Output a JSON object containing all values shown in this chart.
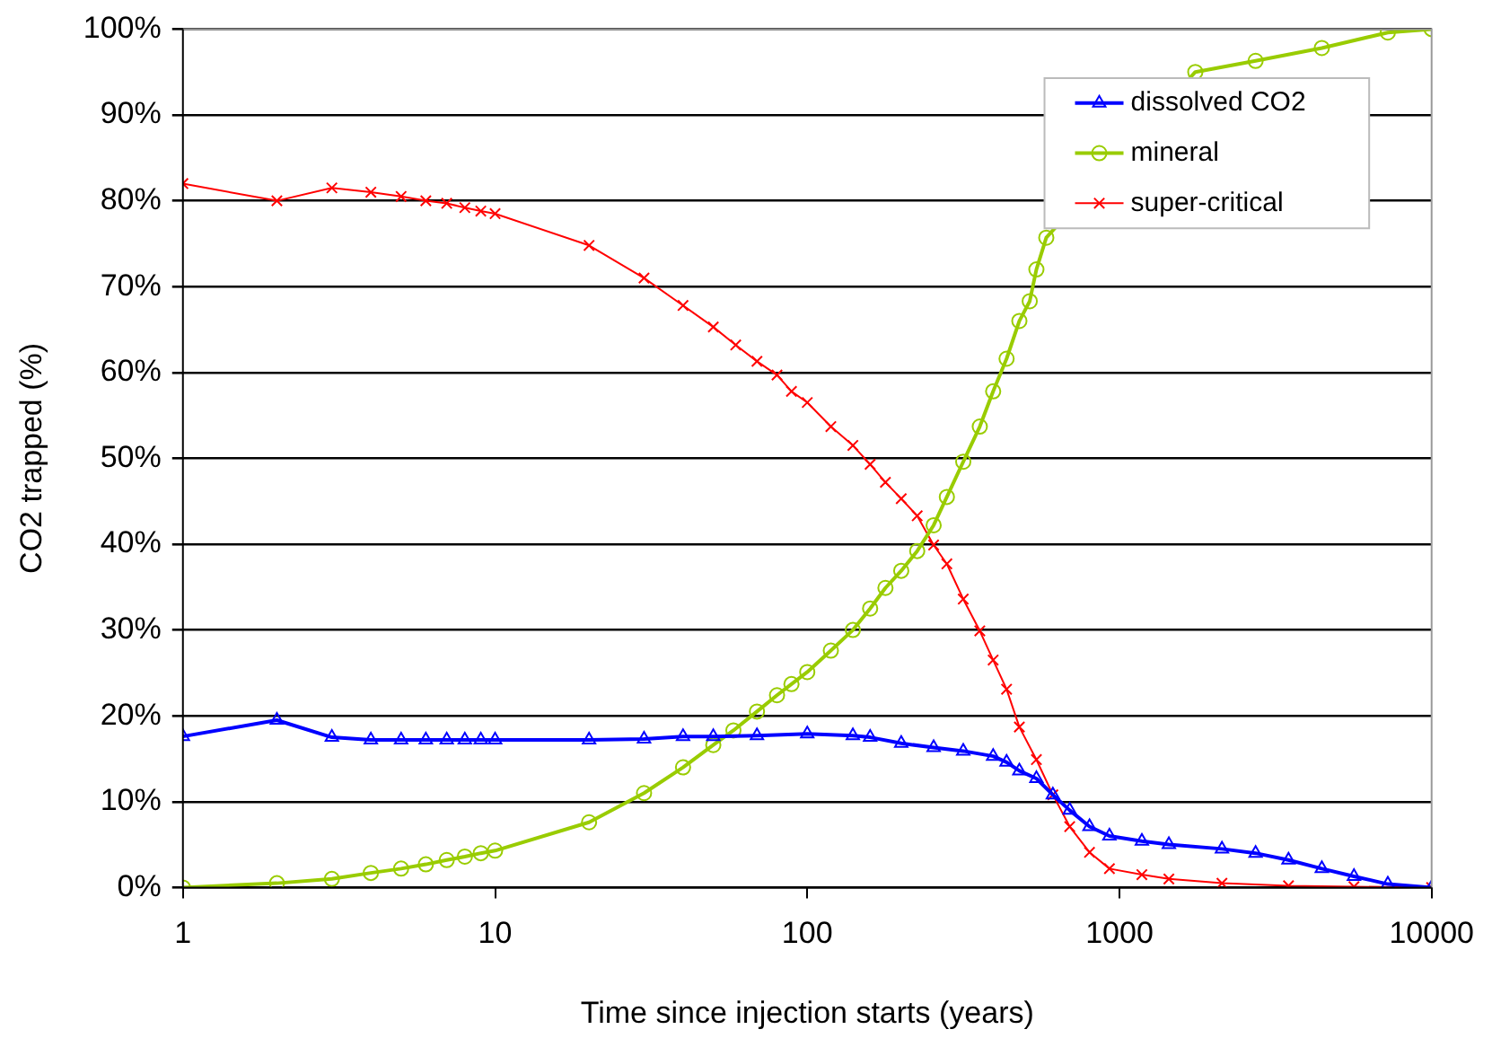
{
  "chart_data": {
    "type": "line",
    "xlabel": "Time since injection starts (years)",
    "ylabel": "CO2 trapped (%)",
    "log": "x",
    "grid": "y",
    "legend": "top right",
    "xlim": [
      1,
      10000
    ],
    "xticks": [
      1,
      10,
      100,
      1000,
      10000
    ],
    "ylim": [
      0,
      100
    ],
    "yticks": [
      {
        "value": 0,
        "label": "0%"
      },
      {
        "value": 10,
        "label": "10%"
      },
      {
        "value": 20,
        "label": "20%"
      },
      {
        "value": 30,
        "label": "30%"
      },
      {
        "value": 40,
        "label": "40%"
      },
      {
        "value": 50,
        "label": "50%"
      },
      {
        "value": 60,
        "label": "60%"
      },
      {
        "value": 70,
        "label": "70%"
      },
      {
        "value": 80,
        "label": "80%"
      },
      {
        "value": 90,
        "label": "90%"
      },
      {
        "value": 100,
        "label": "100%"
      }
    ],
    "series": [
      {
        "name": "dissolved CO2",
        "color": "#0000ff",
        "marker": "triangle",
        "x": [
          1,
          2,
          3,
          4,
          5,
          6,
          7,
          8,
          9,
          10,
          20,
          30,
          40,
          50,
          69,
          100,
          140,
          159,
          200,
          254,
          316,
          394,
          435,
          478,
          542,
          612,
          693,
          802,
          929,
          1180,
          1440,
          2130,
          2730,
          3480,
          4450,
          5640,
          7240,
          10000
        ],
        "values": [
          17.6,
          19.5,
          17.5,
          17.2,
          17.2,
          17.2,
          17.2,
          17.2,
          17.2,
          17.2,
          17.2,
          17.3,
          17.6,
          17.6,
          17.7,
          17.9,
          17.7,
          17.5,
          16.8,
          16.3,
          15.9,
          15.3,
          14.6,
          13.6,
          12.7,
          10.8,
          9.0,
          7.1,
          6.0,
          5.4,
          5.0,
          4.5,
          4.0,
          3.2,
          2.2,
          1.3,
          0.4,
          0
        ]
      },
      {
        "name": "mineral",
        "color": "#99cc00",
        "marker": "circle",
        "x": [
          1,
          2,
          3,
          4,
          5,
          6,
          7,
          8,
          9,
          10,
          20,
          30,
          40,
          50,
          58,
          69,
          80,
          89,
          100,
          119,
          140,
          159,
          178,
          200,
          225,
          254,
          280,
          316,
          357,
          394,
          435,
          478,
          516,
          542,
          583,
          1750,
          2730,
          4450,
          7240,
          10000
        ],
        "values": [
          0,
          0.5,
          1,
          1.7,
          2.2,
          2.7,
          3.2,
          3.6,
          4.0,
          4.3,
          7.6,
          11.0,
          14.0,
          16.6,
          18.3,
          20.5,
          22.4,
          23.7,
          25.1,
          27.6,
          30.0,
          32.5,
          34.9,
          36.9,
          39.2,
          42.2,
          45.5,
          49.6,
          53.7,
          57.8,
          61.6,
          66.0,
          68.3,
          72.0,
          75.7,
          95.0,
          96.3,
          97.8,
          99.6,
          100
        ]
      },
      {
        "name": "super-critical",
        "color": "#ff0000",
        "marker": "cross",
        "x": [
          1,
          2,
          3,
          4,
          5,
          6,
          7,
          8,
          9,
          10,
          20,
          30,
          40,
          50,
          59,
          69,
          80,
          89,
          100,
          119,
          140,
          159,
          178,
          200,
          225,
          254,
          280,
          316,
          357,
          394,
          435,
          478,
          542,
          612,
          693,
          802,
          929,
          1180,
          1440,
          2130,
          3480,
          5640,
          10000
        ],
        "values": [
          82,
          80,
          81.5,
          81,
          80.5,
          80,
          79.7,
          79.2,
          78.8,
          78.5,
          74.8,
          71.0,
          67.8,
          65.3,
          63.2,
          61.3,
          59.7,
          57.8,
          56.5,
          53.7,
          51.5,
          49.3,
          47.2,
          45.3,
          43.3,
          39.9,
          37.7,
          33.6,
          29.9,
          26.5,
          23.1,
          18.7,
          14.9,
          10.8,
          7.1,
          4.1,
          2.2,
          1.5,
          1.0,
          0.5,
          0.2,
          0.1,
          0
        ]
      }
    ]
  }
}
